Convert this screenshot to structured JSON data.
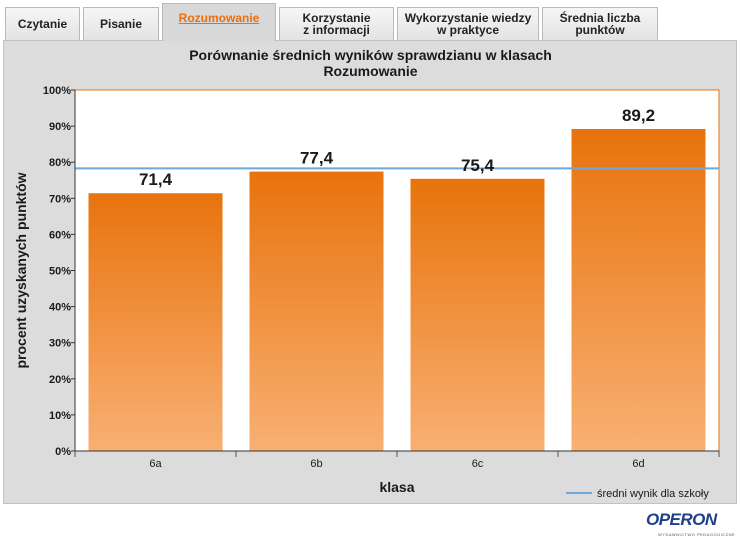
{
  "tabs": [
    {
      "label": "Czytanie",
      "active": false
    },
    {
      "label": "Pisanie",
      "active": false
    },
    {
      "label": "Rozumowanie",
      "active": true
    },
    {
      "label": "Korzystanie\nz informacji",
      "active": false
    },
    {
      "label": "Wykorzystanie wiedzy\nw praktyce",
      "active": false
    },
    {
      "label": "Średnia liczba\npunktów",
      "active": false
    }
  ],
  "chart_data": {
    "type": "bar",
    "title": "Porównanie średnich wyników sprawdzianu w klasach",
    "subtitle": "Rozumowanie",
    "categories": [
      "6a",
      "6b",
      "6c",
      "6d"
    ],
    "values": [
      71.4,
      77.4,
      75.4,
      89.2
    ],
    "value_labels": [
      "71,4",
      "77,4",
      "75,4",
      "89,2"
    ],
    "xlabel": "klasa",
    "ylabel": "procent uzyskanych punktów",
    "ylim": [
      0,
      100
    ],
    "yticks": [
      0,
      10,
      20,
      30,
      40,
      50,
      60,
      70,
      80,
      90,
      100
    ],
    "ytick_labels": [
      "0%",
      "10%",
      "20%",
      "30%",
      "40%",
      "50%",
      "60%",
      "70%",
      "80%",
      "90%",
      "100%"
    ],
    "reference_line": {
      "name": "średni wynik dla szkoły",
      "value": 78.3,
      "color": "#6fa8dc"
    },
    "bar_color_top": "#e8730c",
    "bar_color_bottom": "#f8b073",
    "plot_border_color": "#e8730c",
    "legend_position": "bottom-right",
    "grid": false
  },
  "logo": {
    "text": "OPERON",
    "tagline": "WYDAWNICTWO PEDAGOGICZNE"
  }
}
